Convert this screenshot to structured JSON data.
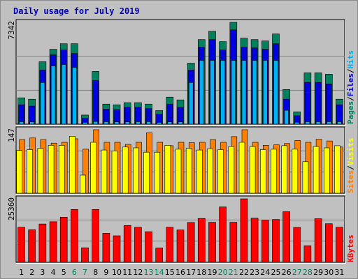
{
  "title": "Daily usage for July 2019",
  "colors": {
    "background": "#c0c0c0",
    "title": "#0000c0",
    "hits": "#00b0f0",
    "files": "#0000e0",
    "pages": "#00805c",
    "visits": "#ffff00",
    "sites": "#ff8000",
    "kbytes": "#ff0000",
    "weekday_tick": "#000000",
    "weekend_tick": "#00805c"
  },
  "chart_data": [
    {
      "type": "bar",
      "name": "hits-files-pages",
      "ymax_label": "7342",
      "ylim": [
        0,
        7342
      ],
      "legend": [
        "Pages",
        "/",
        "Files",
        "/",
        "Hits"
      ],
      "legend_colors": [
        "#00805c",
        "#000000",
        "#0000e0",
        "#000000",
        "#00b0f0"
      ],
      "categories": [
        "1",
        "2",
        "3",
        "4",
        "5",
        "6",
        "7",
        "8",
        "9",
        "10",
        "11",
        "12",
        "13",
        "14",
        "15",
        "16",
        "17",
        "18",
        "19",
        "20",
        "21",
        "22",
        "23",
        "24",
        "25",
        "26",
        "27",
        "28",
        "29",
        "30",
        "31"
      ],
      "series": [
        {
          "name": "Pages",
          "color": "#00805c",
          "values": [
            1900,
            1800,
            4500,
            5400,
            5800,
            5800,
            660,
            3800,
            1450,
            1400,
            1550,
            1550,
            1450,
            980,
            1950,
            1750,
            4400,
            6100,
            6700,
            5950,
            7342,
            6200,
            6100,
            6000,
            6500,
            2500,
            890,
            3700,
            3700,
            3600,
            1800
          ]
        },
        {
          "name": "Files",
          "color": "#0000e0",
          "values": [
            1400,
            1300,
            3900,
            5000,
            5350,
            5100,
            420,
            3150,
            1080,
            1050,
            1220,
            1230,
            1120,
            720,
            1450,
            1200,
            3900,
            5550,
            6100,
            5350,
            6800,
            5550,
            5500,
            5400,
            5800,
            1800,
            610,
            3000,
            3000,
            2900,
            1400
          ]
        },
        {
          "name": "Hits",
          "color": "#00b0f0",
          "values": [
            180,
            170,
            3000,
            4200,
            4300,
            4100,
            130,
            190,
            180,
            170,
            170,
            180,
            180,
            130,
            170,
            170,
            3000,
            4600,
            4600,
            4600,
            4600,
            4600,
            4600,
            4600,
            4600,
            1000,
            140,
            180,
            180,
            180,
            180
          ]
        }
      ]
    },
    {
      "type": "bar",
      "name": "visits-sites",
      "ymax_label": "147",
      "ylim": [
        0,
        147
      ],
      "legend": [
        "Sites",
        "/",
        "Visits"
      ],
      "legend_colors": [
        "#ff8000",
        "#000000",
        "#ffff00"
      ],
      "categories": [
        "1",
        "2",
        "3",
        "4",
        "5",
        "6",
        "7",
        "8",
        "9",
        "10",
        "11",
        "12",
        "13",
        "14",
        "15",
        "16",
        "17",
        "18",
        "19",
        "20",
        "21",
        "22",
        "23",
        "24",
        "25",
        "26",
        "27",
        "28",
        "29",
        "30",
        "31"
      ],
      "series": [
        {
          "name": "Sites",
          "color": "#ff8000",
          "values": [
            124,
            128,
            124,
            116,
            118,
            126,
            102,
            147,
            118,
            118,
            113,
            118,
            140,
            118,
            110,
            118,
            117,
            118,
            124,
            118,
            131,
            147,
            118,
            111,
            112,
            115,
            122,
            118,
            125,
            121,
            107
          ]
        },
        {
          "name": "Visits",
          "color": "#ffff00",
          "values": [
            99,
            101,
            104,
            111,
            111,
            132,
            42,
            118,
            100,
            98,
            107,
            105,
            95,
            95,
            111,
            102,
            104,
            100,
            103,
            101,
            108,
            118,
            108,
            101,
            102,
            110,
            102,
            73,
            108,
            105,
            110
          ]
        }
      ]
    },
    {
      "type": "bar",
      "name": "kbytes",
      "ymax_label": "25360",
      "ylim": [
        0,
        25360
      ],
      "legend": [
        "KBytes"
      ],
      "legend_colors": [
        "#ff0000"
      ],
      "categories": [
        "1",
        "2",
        "3",
        "4",
        "5",
        "6",
        "7",
        "8",
        "9",
        "10",
        "11",
        "12",
        "13",
        "14",
        "15",
        "16",
        "17",
        "18",
        "19",
        "20",
        "21",
        "22",
        "23",
        "24",
        "25",
        "26",
        "27",
        "28",
        "29",
        "30",
        "31"
      ],
      "series": [
        {
          "name": "KBytes",
          "color": "#ff0000",
          "values": [
            14000,
            13000,
            15300,
            16200,
            18000,
            21100,
            5800,
            21100,
            11600,
            10600,
            14700,
            14000,
            12200,
            5700,
            14000,
            12900,
            15900,
            17500,
            16000,
            22100,
            16000,
            25360,
            17600,
            16800,
            17100,
            20200,
            13900,
            6600,
            17400,
            15400,
            14000
          ]
        }
      ]
    }
  ],
  "x_axis": {
    "labels": [
      "1",
      "2",
      "3",
      "4",
      "5",
      "6",
      "7",
      "8",
      "9",
      "10",
      "11",
      "12",
      "13",
      "14",
      "15",
      "16",
      "17",
      "18",
      "19",
      "20",
      "21",
      "22",
      "23",
      "24",
      "25",
      "26",
      "27",
      "28",
      "29",
      "30",
      "31"
    ],
    "weekend": [
      6,
      7,
      13,
      14,
      20,
      21,
      27,
      28
    ]
  }
}
